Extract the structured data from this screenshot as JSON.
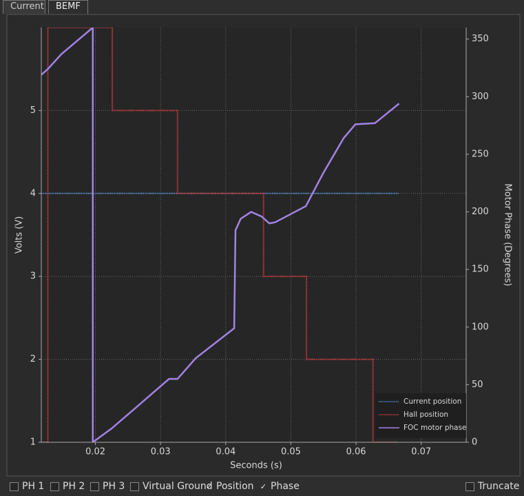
{
  "tabs": [
    "Current",
    "BEMF"
  ],
  "chart_data": {
    "type": "line",
    "x_label": "Seconds (s)",
    "y_label": "Volts (V)",
    "y2_label": "Motor Phase (Degrees)",
    "xlim": [
      0.0117,
      0.0769
    ],
    "xticks": [
      0.02,
      0.03,
      0.04,
      0.05,
      0.06,
      0.07
    ],
    "ylim": [
      1,
      6
    ],
    "yticks": [
      1,
      2,
      3,
      4,
      5
    ],
    "y2lim": [
      0,
      360
    ],
    "y2ticks": [
      0,
      50,
      100,
      150,
      200,
      250,
      300,
      350
    ],
    "grid": true,
    "legend": "lower right",
    "series": [
      {
        "name": "Current position",
        "color": "#4f86c6",
        "style": "dotted",
        "x": [
          0.0117,
          0.0665
        ],
        "values": [
          4,
          4
        ]
      },
      {
        "name": "Hall position",
        "color": "#cc3b3b",
        "style": "dotted",
        "x": [
          0.0117,
          0.0127,
          0.0127,
          0.0226,
          0.0226,
          0.0326,
          0.0326,
          0.0458,
          0.0458,
          0.0524,
          0.0524,
          0.0626,
          0.0626,
          0.0665
        ],
        "values": [
          1,
          1,
          6,
          6,
          5,
          5,
          4,
          4,
          3,
          3,
          2,
          2,
          1,
          1
        ]
      },
      {
        "name": "FOC motor phase",
        "color": "#a184e6",
        "style": "solid",
        "axis": "y2",
        "x": [
          0.0117,
          0.0127,
          0.0148,
          0.0196,
          0.0196,
          0.0225,
          0.0264,
          0.0313,
          0.0326,
          0.0354,
          0.0413,
          0.0415,
          0.0423,
          0.0439,
          0.0455,
          0.0467,
          0.0476,
          0.0523,
          0.055,
          0.0581,
          0.0599,
          0.0629,
          0.0666
        ],
        "values": [
          319,
          324,
          337,
          360,
          0,
          12,
          31,
          55,
          55,
          73,
          99,
          184,
          194,
          200,
          196,
          190,
          191,
          205,
          234,
          264,
          276,
          277,
          294
        ]
      }
    ]
  },
  "controls": [
    {
      "label": "PH 1",
      "checked": false
    },
    {
      "label": "PH 2",
      "checked": false
    },
    {
      "label": "PH 3",
      "checked": false
    },
    {
      "label": "Virtual Ground",
      "checked": false
    },
    {
      "label": "Position",
      "checked": true
    },
    {
      "label": "Phase",
      "checked": true
    },
    {
      "label": "Truncate",
      "checked": false
    }
  ]
}
